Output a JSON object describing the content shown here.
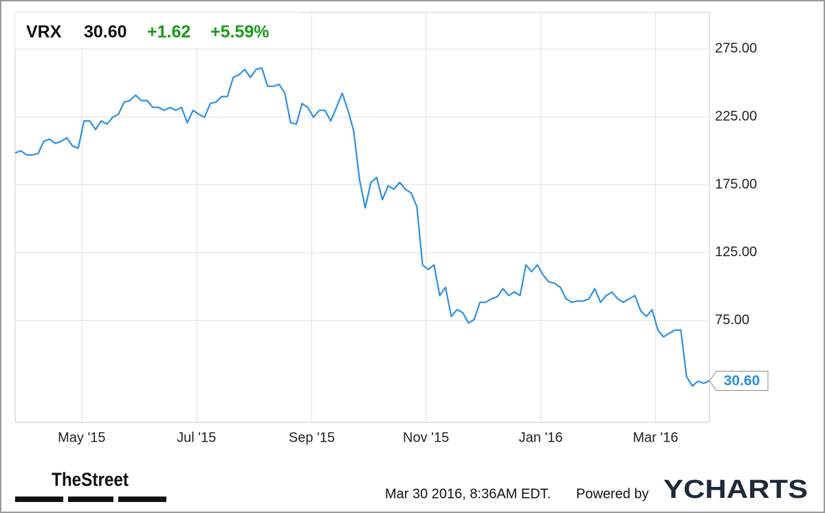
{
  "chart_data": {
    "type": "line",
    "ticker": {
      "symbol": "VRX",
      "price": "30.60",
      "change": "+1.62",
      "change_pct": "+5.59%"
    },
    "series": [
      {
        "name": "VRX",
        "color": "#2b8fe3",
        "values": [
          198.5,
          200,
          197,
          197,
          198,
          207,
          208.6,
          205.5,
          207,
          209.6,
          203.5,
          202,
          222,
          222,
          215.7,
          222,
          219.7,
          224.7,
          227,
          235.9,
          237,
          241,
          237,
          237,
          232,
          232,
          229.8,
          232,
          229.8,
          232,
          220.7,
          229.8,
          227,
          224.7,
          234.8,
          235.9,
          240,
          240,
          254,
          256,
          260,
          254,
          260,
          261,
          247.5,
          247.5,
          249,
          242.4,
          220.7,
          219.7,
          234.8,
          232,
          224.7,
          229.8,
          229.8,
          222,
          232,
          242.4,
          229.8,
          214.6,
          179.3,
          158,
          176.8,
          180.3,
          164,
          174.2,
          171.7,
          176.8,
          171.7,
          169,
          159,
          116,
          112.6,
          116,
          93.4,
          99.5,
          78,
          83,
          80.8,
          73.2,
          75.8,
          88.4,
          88.4,
          91,
          92.4,
          98.5,
          93.4,
          96,
          93.4,
          116,
          111,
          116,
          108.6,
          103.5,
          102.5,
          99.5,
          91,
          88.4,
          89.4,
          89.4,
          91,
          98.5,
          88.4,
          93.4,
          96,
          91,
          88.4,
          91,
          93.4,
          82.3,
          78,
          83,
          68,
          63,
          65.7,
          68,
          68,
          33.8,
          26.8,
          30.3,
          28.8,
          30.6
        ]
      }
    ],
    "xlim": [
      0,
      121
    ],
    "xticks": [
      {
        "value": 11.6,
        "label": "May '15"
      },
      {
        "value": 31.6,
        "label": "Jul '15"
      },
      {
        "value": 51.7,
        "label": "Sep '15"
      },
      {
        "value": 71.6,
        "label": "Nov '15"
      },
      {
        "value": 91.6,
        "label": "Jan '16"
      },
      {
        "value": 111.6,
        "label": "Mar '16"
      }
    ],
    "ylim": [
      0,
      302
    ],
    "yticks": [
      {
        "value": 75,
        "label": "75.00"
      },
      {
        "value": 125,
        "label": "125.00"
      },
      {
        "value": 175,
        "label": "175.00"
      },
      {
        "value": 225,
        "label": "225.00"
      },
      {
        "value": 275,
        "label": "275.00"
      }
    ],
    "grid": true
  },
  "footer": {
    "source_logo": "TheStreet",
    "timestamp": "Mar 30 2016, 8:36AM EDT.",
    "powered": "Powered by",
    "brand": "YCHARTS"
  }
}
